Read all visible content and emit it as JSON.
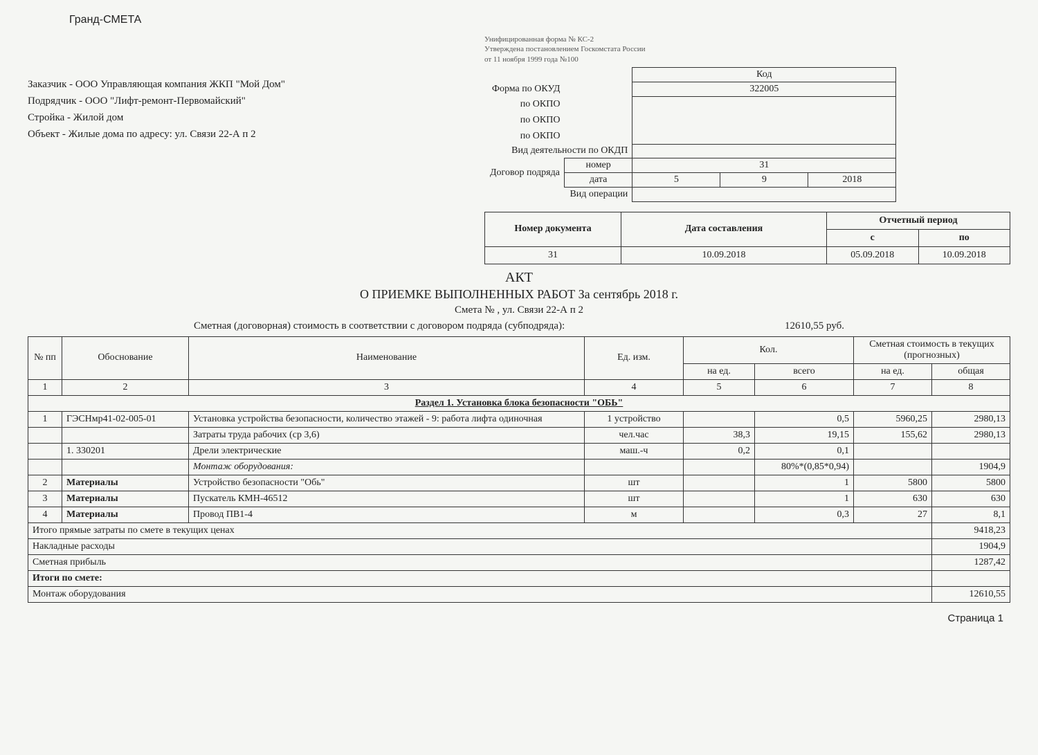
{
  "app_title": "Гранд-СМЕТА",
  "form_note_1": "Унифицированная форма № КС-2",
  "form_note_2": "Утверждена постановлением Госкомстата России",
  "form_note_3": "от 11 ноября 1999 года №100",
  "customer": "Заказчик - ООО Управляющая компания ЖКП \"Мой Дом\"",
  "contractor": "Подрядчик  - ООО \"Лифт-ремонт-Первомайский\"",
  "construction": "Стройка - Жилой дом",
  "object": "Объект - Жилые дома по адресу: ул. Связи 22-А п 2",
  "codes": {
    "kod_header": "Код",
    "okud_label": "Форма по ОКУД",
    "okud_value": "322005",
    "okpo1_label": "по ОКПО",
    "okpo2_label": "по ОКПО",
    "okpo3_label": "по ОКПО",
    "okdp_label": "Вид деятельности по ОКДП",
    "contract_label": "Договор подряда",
    "num_label": "номер",
    "num_value": "31",
    "date_label": "дата",
    "date_d": "5",
    "date_m": "9",
    "date_y": "2018",
    "op_label": "Вид операции"
  },
  "meta": {
    "doc_num_h": "Номер документа",
    "comp_date_h": "Дата составления",
    "period_h": "Отчетный период",
    "from_h": "с",
    "to_h": "по",
    "doc_num": "31",
    "comp_date": "10.09.2018",
    "from": "05.09.2018",
    "to": "10.09.2018"
  },
  "act_title": "АКТ",
  "act_subtitle": "О ПРИЕМКЕ ВЫПОЛНЕННЫХ РАБОТ За сентябрь 2018 г.",
  "smeta_no": "Смета № ,  ул. Связи 22-А п 2",
  "cost_label": "Сметная (договорная) стоимость в соответствии с договором подряда (субподряда):",
  "cost_value": "12610,55 руб.",
  "headers": {
    "c1": "№ пп",
    "c2": "Обоснование",
    "c3": "Наименование",
    "c4": "Ед. изм.",
    "c5": "Кол.",
    "c5a": "на ед.",
    "c5b": "всего",
    "c6": "Сметная стоимость в текущих (прогнозных)",
    "c6a": "на ед.",
    "c6b": "общая"
  },
  "colnums": [
    "1",
    "2",
    "3",
    "4",
    "5",
    "6",
    "7",
    "8"
  ],
  "section1": "Раздел 1. Установка блока безопасности \"ОБЬ\"",
  "rows": [
    {
      "n": "1",
      "basis": "ГЭСНмр41-02-005-01",
      "name": "Установка устройства безопасности, количество этажей - 9: работа лифта одиночная",
      "unit": "1 устройство",
      "per": "",
      "total": "0,5",
      "uprice": "5960,25",
      "sum": "2980,13"
    },
    {
      "n": "",
      "basis": "",
      "name": "Затраты труда рабочих (ср 3,6)",
      "unit": "чел.час",
      "per": "38,3",
      "total": "19,15",
      "uprice": "155,62",
      "sum": "2980,13"
    },
    {
      "n": "",
      "basis": "1. 330201",
      "name": "Дрели электрические",
      "unit": "маш.-ч",
      "per": "0,2",
      "total": "0,1",
      "uprice": "",
      "sum": ""
    },
    {
      "n": "",
      "basis": "",
      "name": "Монтаж оборудования:",
      "unit": "",
      "per": "",
      "total": "80%*(0,85*0,94)",
      "uprice": "",
      "sum": "1904,9",
      "italic": true
    },
    {
      "n": "2",
      "basis": "Материалы",
      "name": "Устройство безопасности \"Обь\"",
      "unit": "шт",
      "per": "",
      "total": "1",
      "uprice": "5800",
      "sum": "5800",
      "bold_basis": true
    },
    {
      "n": "3",
      "basis": "Материалы",
      "name": "Пускатель КМН-46512",
      "unit": "шт",
      "per": "",
      "total": "1",
      "uprice": "630",
      "sum": "630",
      "bold_basis": true
    },
    {
      "n": "4",
      "basis": "Материалы",
      "name": "Провод ПВ1-4",
      "unit": "м",
      "per": "",
      "total": "0,3",
      "uprice": "27",
      "sum": "8,1",
      "bold_basis": true
    }
  ],
  "totals": [
    {
      "label": "Итого прямые затраты по смете в текущих ценах",
      "value": "9418,23"
    },
    {
      "label": "Накладные расходы",
      "value": "1904,9"
    },
    {
      "label": "Сметная прибыль",
      "value": "1287,42"
    },
    {
      "label": "Итоги по смете:",
      "value": "",
      "bold": true
    },
    {
      "label": "   Монтаж оборудования",
      "value": "12610,55"
    }
  ],
  "page": "Страница 1"
}
